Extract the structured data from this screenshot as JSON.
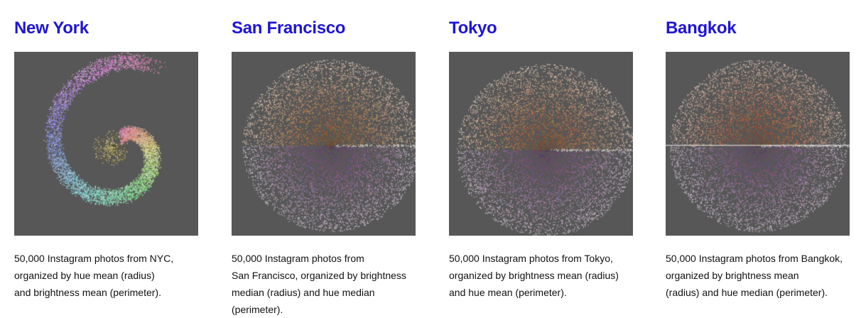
{
  "cities": [
    {
      "title": "New York",
      "caption": [
        "50,000 Instagram photos from NYC,",
        "organized by hue mean (radius)",
        "and brightness mean (perimeter)."
      ]
    },
    {
      "title": "San Francisco",
      "caption": [
        "50,000 Instagram photos from",
        "San Francisco, organized by brightness",
        "median (radius) and hue median",
        "(perimeter)."
      ]
    },
    {
      "title": "Tokyo",
      "caption": [
        "50,000 Instagram photos from Tokyo,",
        "organized by brightness mean (radius)",
        "and hue mean (perimeter)."
      ]
    },
    {
      "title": "Bangkok",
      "caption": [
        "50,000 Instagram photos from Bangkok,",
        "organized by brightness mean",
        "(radius) and hue median (perimeter)."
      ]
    }
  ],
  "colors": {
    "title": "#1e14d8",
    "viz_bg": "#575757"
  }
}
